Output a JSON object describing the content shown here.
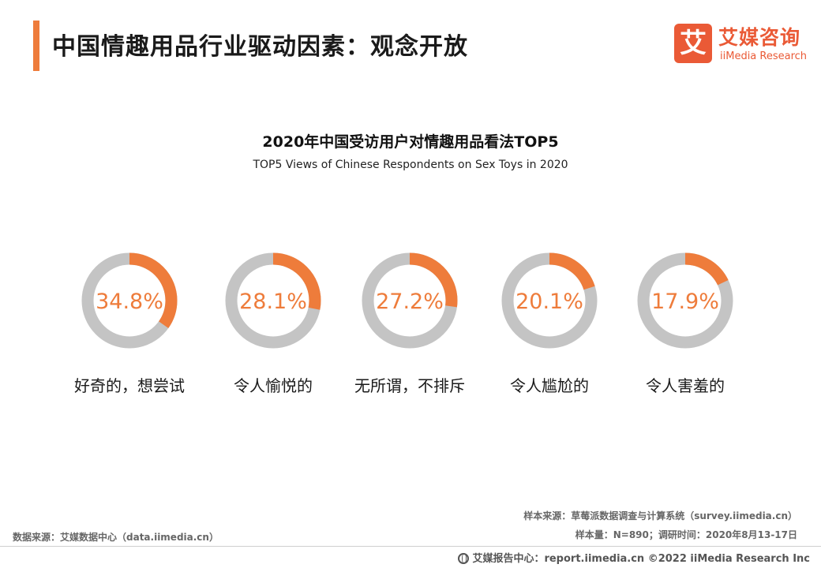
{
  "header": {
    "title": "中国情趣用品行业驱动因素：观念开放"
  },
  "logo": {
    "mark": "艾",
    "cn": "艾媒咨询",
    "en": "iiMedia Research"
  },
  "chart_data": {
    "type": "donut",
    "title": "2020年中国受访用户对情趣用品看法TOP5",
    "subtitle": "TOP5 Views of Chinese Respondents on Sex Toys in 2020",
    "unit": "%",
    "items": [
      {
        "label": "好奇的，想尝试",
        "value": 34.8,
        "display": "34.8%"
      },
      {
        "label": "令人愉悦的",
        "value": 28.1,
        "display": "28.1%"
      },
      {
        "label": "无所谓，不排斥",
        "value": 27.2,
        "display": "27.2%"
      },
      {
        "label": "令人尴尬的",
        "value": 20.1,
        "display": "20.1%"
      },
      {
        "label": "令人害羞的",
        "value": 17.9,
        "display": "17.9%"
      }
    ],
    "colors": {
      "value": "#ee7c3b",
      "rest": "#c4c4c4"
    }
  },
  "sources": {
    "left": "数据来源：艾媒数据中心（data.iimedia.cn）",
    "right_line1": "样本来源：草莓派数据调查与计算系统（survey.iimedia.cn）",
    "right_line2": "样本量：N=890；调研时间：2020年8月13-17日"
  },
  "footer": {
    "text": "艾媒报告中心：report.iimedia.cn  ©2022  iiMedia Research  Inc"
  }
}
